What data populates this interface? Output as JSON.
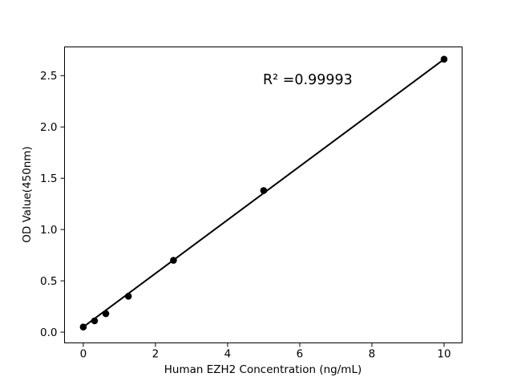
{
  "figure": {
    "background": "#ffffff",
    "foreground": "#000000"
  },
  "chart_data": {
    "type": "scatter",
    "title": "",
    "xlabel": "Human EZH2 Concentration (ng/mL)",
    "ylabel": "OD Value(450nm)",
    "x": [
      0,
      0.3125,
      0.625,
      1.25,
      2.5,
      5,
      10
    ],
    "y": [
      0.05,
      0.11,
      0.18,
      0.35,
      0.7,
      1.38,
      2.66
    ],
    "fit_line": {
      "x1": 0,
      "y1": 0.05,
      "x2": 10,
      "y2": 2.66
    },
    "annotation": {
      "text": "R² =0.99993",
      "x": 5,
      "y": 2.4
    },
    "xticks": [
      0,
      2,
      4,
      6,
      8,
      10
    ],
    "yticks": [
      0.0,
      0.5,
      1.0,
      1.5,
      2.0,
      2.5
    ],
    "xlim": [
      -0.52,
      10.5
    ],
    "ylim": [
      -0.105,
      2.78
    ],
    "grid": false,
    "legend": null,
    "marker_color": "#000000",
    "line_color": "#000000",
    "axis_color": "#000000"
  }
}
